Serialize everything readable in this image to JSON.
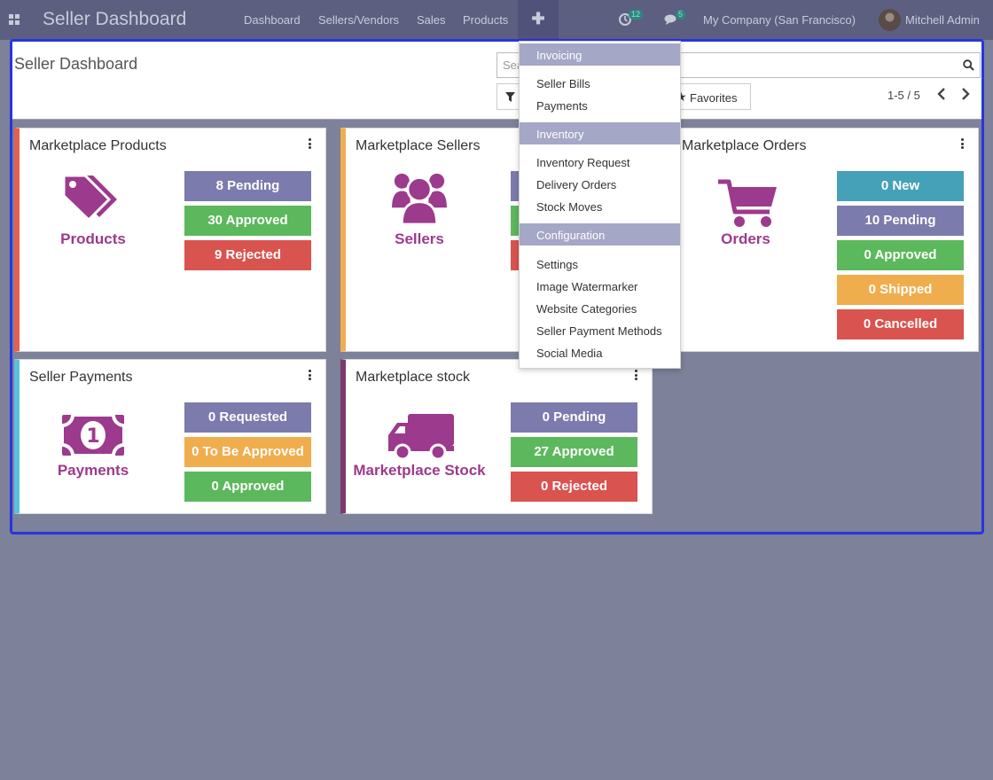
{
  "navbar": {
    "brand": "Seller Dashboard",
    "menu": [
      "Dashboard",
      "Sellers/Vendors",
      "Sales",
      "Products"
    ],
    "plus": "✚",
    "activity_count": "12",
    "messages_count": "5",
    "company": "My Company (San Francisco)",
    "user": "Mitchell Admin"
  },
  "control_panel": {
    "title": "Seller Dashboard",
    "search_placeholder": "Search...",
    "favorites": "Favorites",
    "pager": "1-5 / 5"
  },
  "cards": [
    {
      "title": "Marketplace Products",
      "label": "Products",
      "icon": "tags-icon",
      "accent": "#e45f4d",
      "stats": [
        {
          "label": "8 Pending",
          "color": "#7c7bad"
        },
        {
          "label": "30 Approved",
          "color": "#5cb85c"
        },
        {
          "label": "9 Rejected",
          "color": "#d9534f"
        }
      ]
    },
    {
      "title": "Marketplace Sellers",
      "label": "Sellers",
      "icon": "users-icon",
      "accent": "#f0ad4e",
      "stats": [
        {
          "label": "",
          "color": "#7c7bad"
        },
        {
          "label": "",
          "color": "#5cb85c"
        },
        {
          "label": "",
          "color": "#d9534f"
        }
      ]
    },
    {
      "title": "Marketplace Orders",
      "label": "Orders",
      "icon": "shopping-cart-icon",
      "accent": "#9c3a8d",
      "stats": [
        {
          "label": "0 New",
          "color": "#45a1b8"
        },
        {
          "label": "10 Pending",
          "color": "#7c7bad"
        },
        {
          "label": "0 Approved",
          "color": "#5cb85c"
        },
        {
          "label": "0 Shipped",
          "color": "#f0ad4e"
        },
        {
          "label": "0 Cancelled",
          "color": "#d9534f"
        }
      ]
    },
    {
      "title": "Seller Payments",
      "label": "Payments",
      "icon": "money-icon",
      "accent": "#5bc0de",
      "stats": [
        {
          "label": "0 Requested",
          "color": "#7c7bad"
        },
        {
          "label": "0 To Be Approved",
          "color": "#f0ad4e"
        },
        {
          "label": "0 Approved",
          "color": "#5cb85c"
        }
      ]
    },
    {
      "title": "Marketplace stock",
      "label": "Marketplace Stock",
      "icon": "truck-icon",
      "accent": "#7b3a6e",
      "stats": [
        {
          "label": "0 Pending",
          "color": "#7c7bad"
        },
        {
          "label": "27 Approved",
          "color": "#5cb85c"
        },
        {
          "label": "0 Rejected",
          "color": "#d9534f"
        }
      ]
    }
  ],
  "dropdown": {
    "sections": [
      {
        "header": "Invoicing",
        "items": [
          "Seller Bills",
          "Payments"
        ]
      },
      {
        "header": "Inventory",
        "items": [
          "Inventory Request",
          "Delivery Orders",
          "Stock Moves"
        ]
      },
      {
        "header": "Configuration",
        "items": [
          "Settings",
          "Image Watermarker",
          "Website Categories",
          "Seller Payment Methods",
          "Social Media"
        ]
      }
    ]
  }
}
